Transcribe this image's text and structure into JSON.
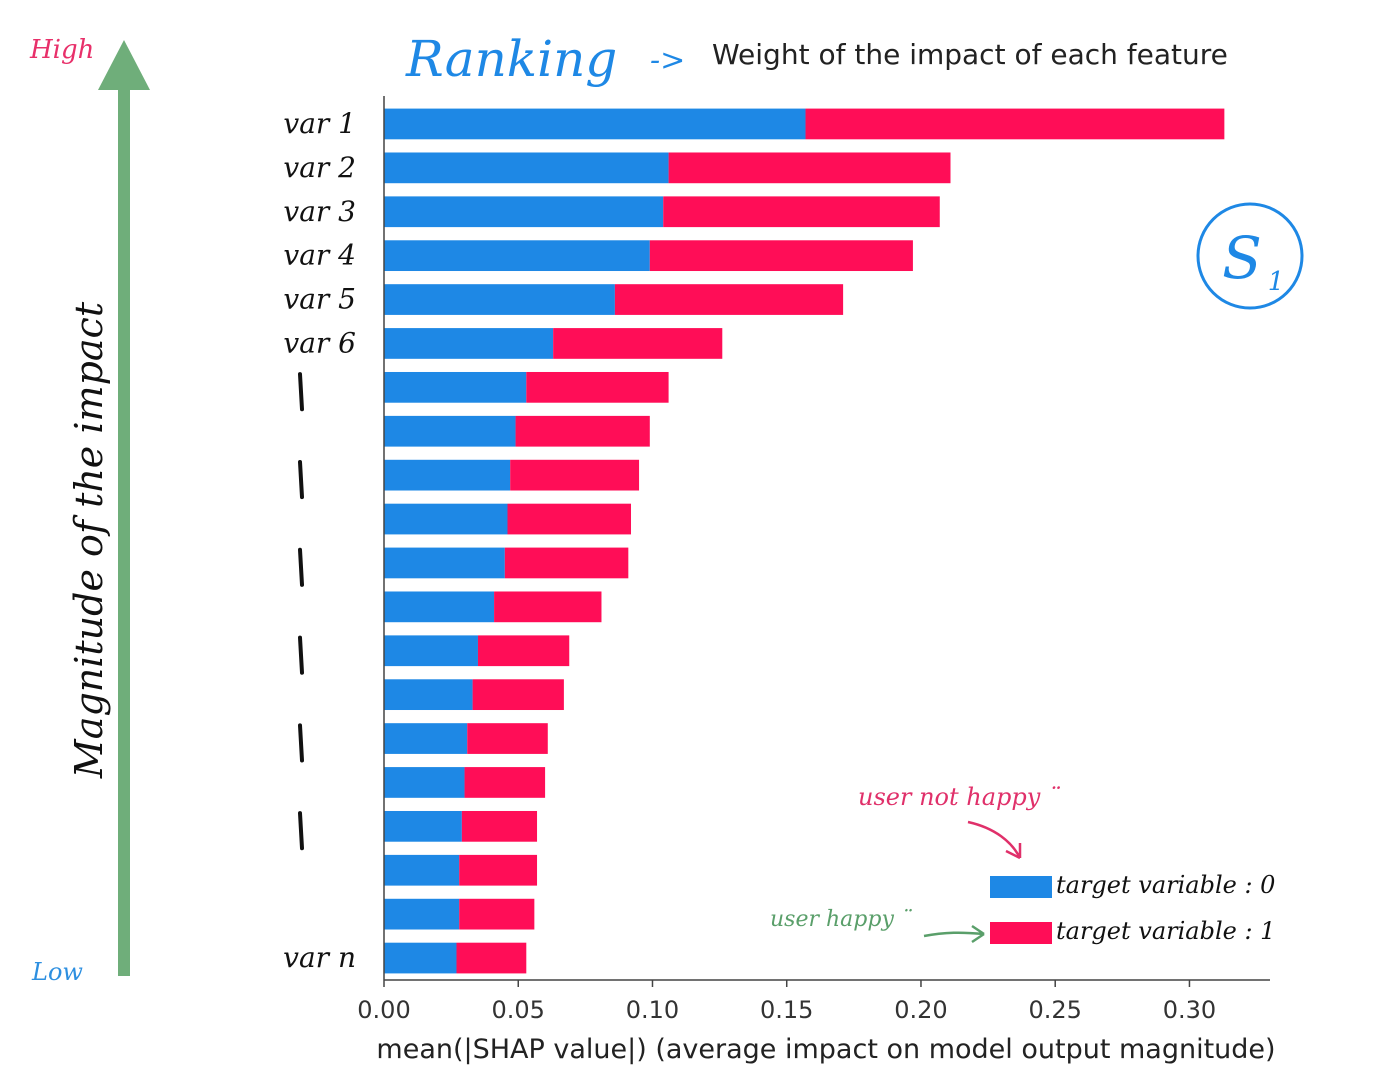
{
  "annotations": {
    "high_label": "High",
    "low_label": "Low",
    "vertical_label": "Magnitude of the impact",
    "ranking_word": "Ranking",
    "ranking_arrow": "->",
    "ranking_description": "Weight of the impact of each feature",
    "s1_letter": "S",
    "s1_subscript": "1",
    "user_not_happy": "user not happy ¨",
    "user_happy": "user happy ¨",
    "colors": {
      "high": "#e8306a",
      "low": "#2d8fe0",
      "arrow": "#6fae7a",
      "ranking": "#1e88e5",
      "not_happy": "#e0306a",
      "happy": "#5a9f6a"
    }
  },
  "chart_data": {
    "type": "bar",
    "orientation": "horizontal",
    "stacked": true,
    "categories": [
      "var 1",
      "var 2",
      "var 3",
      "var 4",
      "var 5",
      "var 6",
      "",
      "",
      "",
      "",
      "",
      "",
      "",
      "",
      "",
      "",
      "",
      "",
      "",
      "var n"
    ],
    "series": [
      {
        "name": "target variable : 0",
        "color": "#1e88e5",
        "values": [
          0.157,
          0.106,
          0.104,
          0.099,
          0.086,
          0.063,
          0.053,
          0.049,
          0.047,
          0.046,
          0.045,
          0.041,
          0.035,
          0.033,
          0.031,
          0.03,
          0.029,
          0.028,
          0.028,
          0.027
        ]
      },
      {
        "name": "target variable : 1",
        "color": "#ff0d57",
        "values": [
          0.156,
          0.105,
          0.103,
          0.098,
          0.085,
          0.063,
          0.053,
          0.05,
          0.048,
          0.046,
          0.046,
          0.04,
          0.034,
          0.034,
          0.03,
          0.03,
          0.028,
          0.029,
          0.028,
          0.026
        ]
      }
    ],
    "xlabel": "mean(|SHAP value|) (average impact on model output magnitude)",
    "xlim": [
      0,
      0.33
    ],
    "xticks": [
      "0.00",
      "0.05",
      "0.10",
      "0.15",
      "0.20",
      "0.25",
      "0.30"
    ],
    "xtick_values": [
      0,
      0.05,
      0.1,
      0.15,
      0.2,
      0.25,
      0.3
    ],
    "legend_position": "bottom-right",
    "grid": false
  }
}
